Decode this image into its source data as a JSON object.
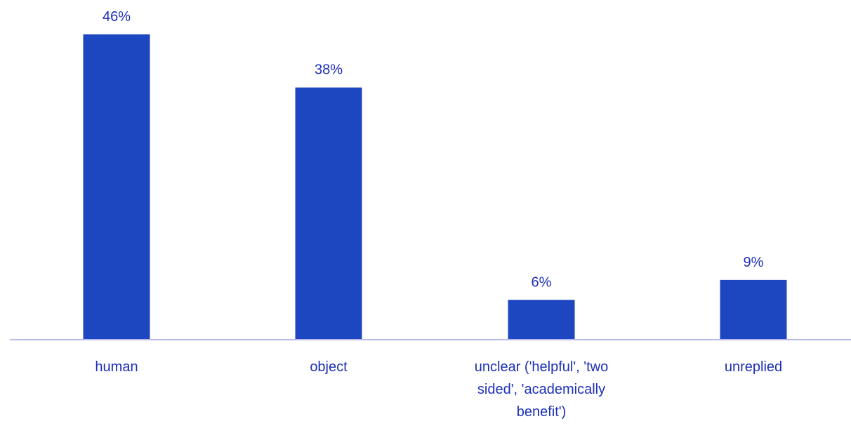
{
  "chart_data": {
    "type": "bar",
    "categories": [
      "human",
      "object",
      "unclear ('helpful', 'two sided', 'academically benefit')",
      "unreplied"
    ],
    "category_label_lines": [
      [
        "human"
      ],
      [
        "object"
      ],
      [
        "unclear ('helpful', 'two",
        "sided', 'academically",
        "benefit')"
      ],
      [
        "unreplied"
      ]
    ],
    "values": [
      46,
      38,
      6,
      9
    ],
    "data_labels": [
      "46%",
      "38%",
      "6%",
      "9%"
    ],
    "unit": "%",
    "ylim": [
      0,
      46
    ],
    "grid": false,
    "legend": "none",
    "colors": {
      "bar": "#1c47c1",
      "text": "#1c2fb8",
      "axis": "#b9b9ee"
    }
  }
}
